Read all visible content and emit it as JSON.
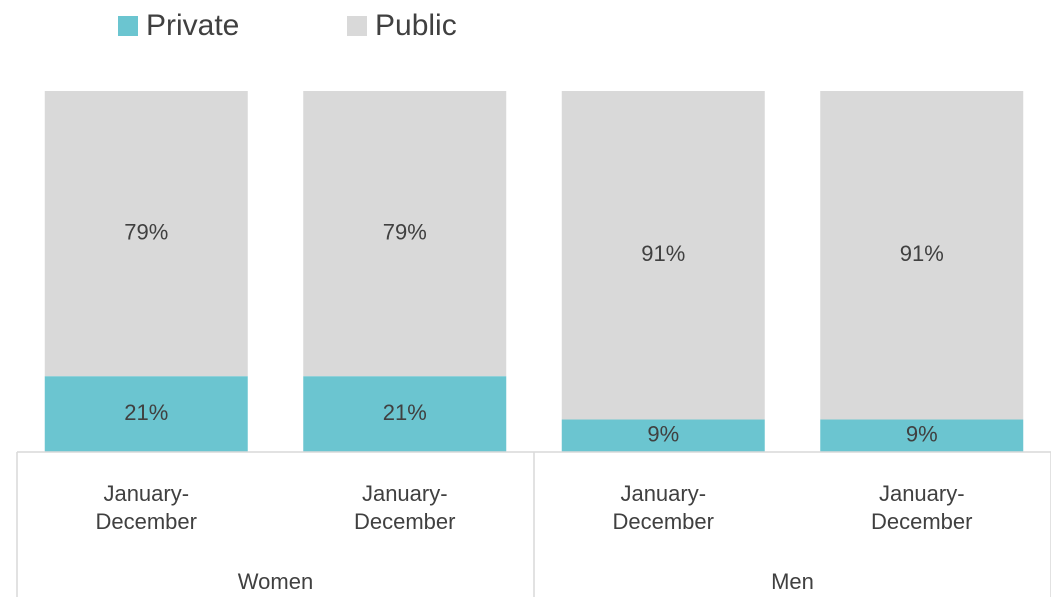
{
  "chart_data": {
    "type": "stacked_bar",
    "categories": [
      "January-December",
      "January-December",
      "January-December",
      "January-December"
    ],
    "groups": [
      "Women",
      "Men"
    ],
    "series": [
      {
        "name": "Private",
        "color": "#6bc5d0",
        "values": [
          21,
          21,
          9,
          9
        ],
        "value_labels": [
          "21%",
          "21%",
          "9%",
          "9%"
        ]
      },
      {
        "name": "Public",
        "color": "#d9d9d9",
        "values": [
          79,
          79,
          91,
          91
        ],
        "value_labels": [
          "79%",
          "79%",
          "91%",
          "91%"
        ]
      }
    ],
    "ylim": [
      0,
      100
    ],
    "legend": "top"
  }
}
